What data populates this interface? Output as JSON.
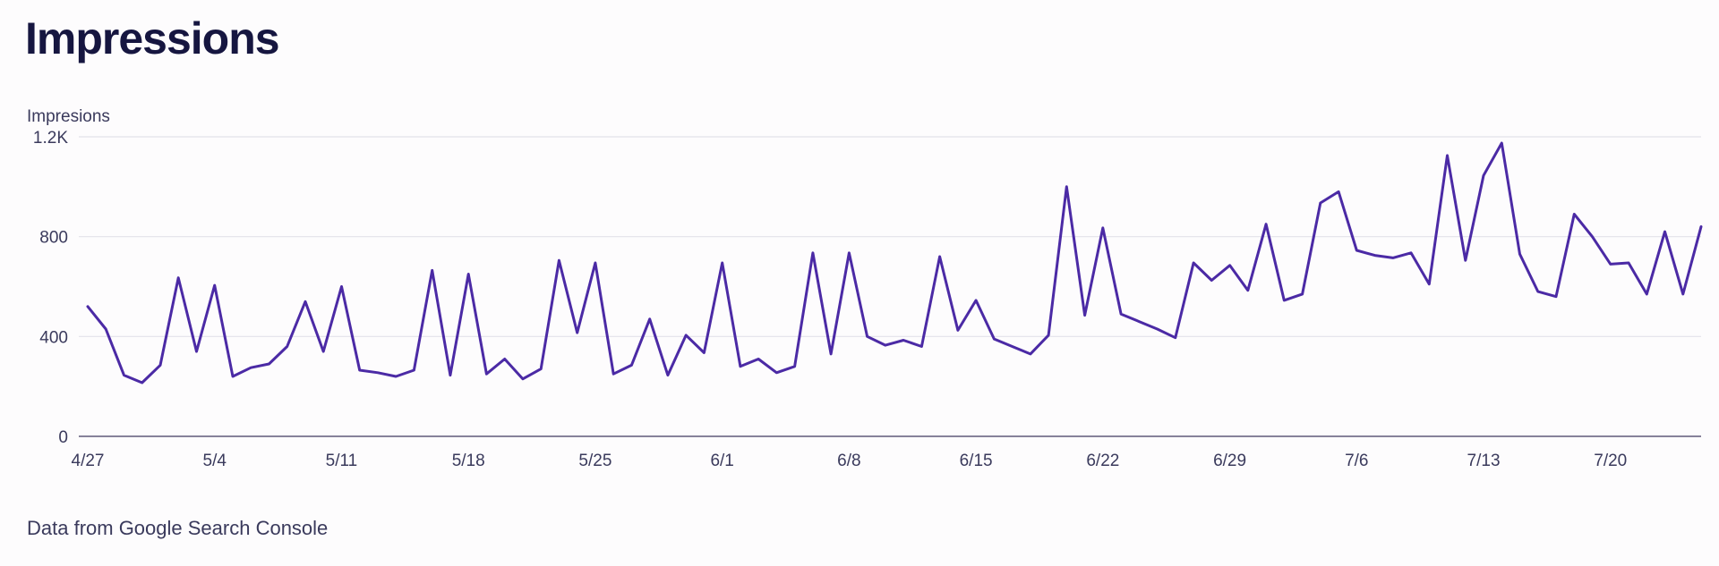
{
  "header": {
    "title": "Impressions"
  },
  "footer": {
    "text": "Data from Google Search Console"
  },
  "colors": {
    "line": "#4b2aa5",
    "title": "#161640"
  },
  "chart_data": {
    "type": "line",
    "ylabel": "Impresions",
    "ylim": [
      0,
      1200
    ],
    "yticks": [
      0,
      400,
      800,
      1200
    ],
    "ytick_labels": [
      "0",
      "400",
      "800",
      "1.2K"
    ],
    "xticks": [
      {
        "index": 0,
        "label": "4/27"
      },
      {
        "index": 7,
        "label": "5/4"
      },
      {
        "index": 14,
        "label": "5/11"
      },
      {
        "index": 21,
        "label": "5/18"
      },
      {
        "index": 28,
        "label": "5/25"
      },
      {
        "index": 35,
        "label": "6/1"
      },
      {
        "index": 42,
        "label": "6/8"
      },
      {
        "index": 49,
        "label": "6/15"
      },
      {
        "index": 56,
        "label": "6/22"
      },
      {
        "index": 63,
        "label": "6/29"
      },
      {
        "index": 70,
        "label": "7/6"
      },
      {
        "index": 77,
        "label": "7/13"
      },
      {
        "index": 84,
        "label": "7/20"
      }
    ],
    "grid": true,
    "legend": "none",
    "series": [
      {
        "values": [
          520,
          430,
          245,
          215,
          285,
          635,
          340,
          605,
          240,
          275,
          290,
          360,
          540,
          340,
          600,
          265,
          255,
          240,
          265,
          665,
          245,
          650,
          250,
          310,
          230,
          270,
          705,
          415,
          695,
          250,
          285,
          470,
          245,
          405,
          335,
          695,
          280,
          310,
          255,
          280,
          735,
          330,
          735,
          400,
          365,
          385,
          360,
          720,
          425,
          545,
          390,
          360,
          330,
          405,
          1000,
          485,
          835,
          490,
          460,
          430,
          395,
          695,
          625,
          685,
          585,
          850,
          545,
          570,
          935,
          980,
          745,
          725,
          715,
          735,
          610,
          1125,
          705,
          1045,
          1175,
          730,
          580,
          560,
          890,
          800,
          690,
          695,
          570,
          820,
          570,
          840
        ]
      }
    ]
  }
}
